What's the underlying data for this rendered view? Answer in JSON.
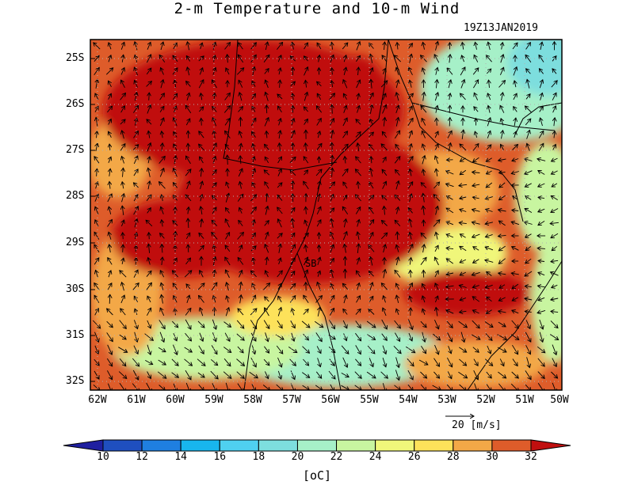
{
  "title": "2-m Temperature and 10-m Wind",
  "timestamp": "19Z13JAN2019",
  "station_label": "SB",
  "y_ticks": [
    "25S",
    "26S",
    "27S",
    "28S",
    "29S",
    "30S",
    "31S",
    "32S"
  ],
  "x_ticks": [
    "62W",
    "61W",
    "60W",
    "59W",
    "58W",
    "57W",
    "56W",
    "55W",
    "54W",
    "53W",
    "52W",
    "51W",
    "50W"
  ],
  "reference_vector": {
    "magnitude": "20",
    "unit": "[m/s]"
  },
  "colorbar": {
    "unit": "[oC]",
    "labels": [
      "10",
      "12",
      "14",
      "16",
      "18",
      "20",
      "22",
      "24",
      "26",
      "28",
      "30",
      "32"
    ],
    "colors": [
      "#1f1fa0",
      "#1f4fbf",
      "#1f7fe0",
      "#18b6ee",
      "#4fd0f0",
      "#7ddede",
      "#a6f0c8",
      "#c8f5a0",
      "#f0f77a",
      "#fde25a",
      "#f3a847",
      "#de5c2a",
      "#c00f0f"
    ]
  },
  "chart_data": {
    "type": "heatmap",
    "title": "2-m Temperature and 10-m Wind",
    "xlabel": "",
    "ylabel": "",
    "xlim": [
      "62W",
      "50W"
    ],
    "ylim": [
      "32S",
      "25S"
    ],
    "grid": true,
    "color_scale_range_oC": [
      10,
      32
    ]
  }
}
